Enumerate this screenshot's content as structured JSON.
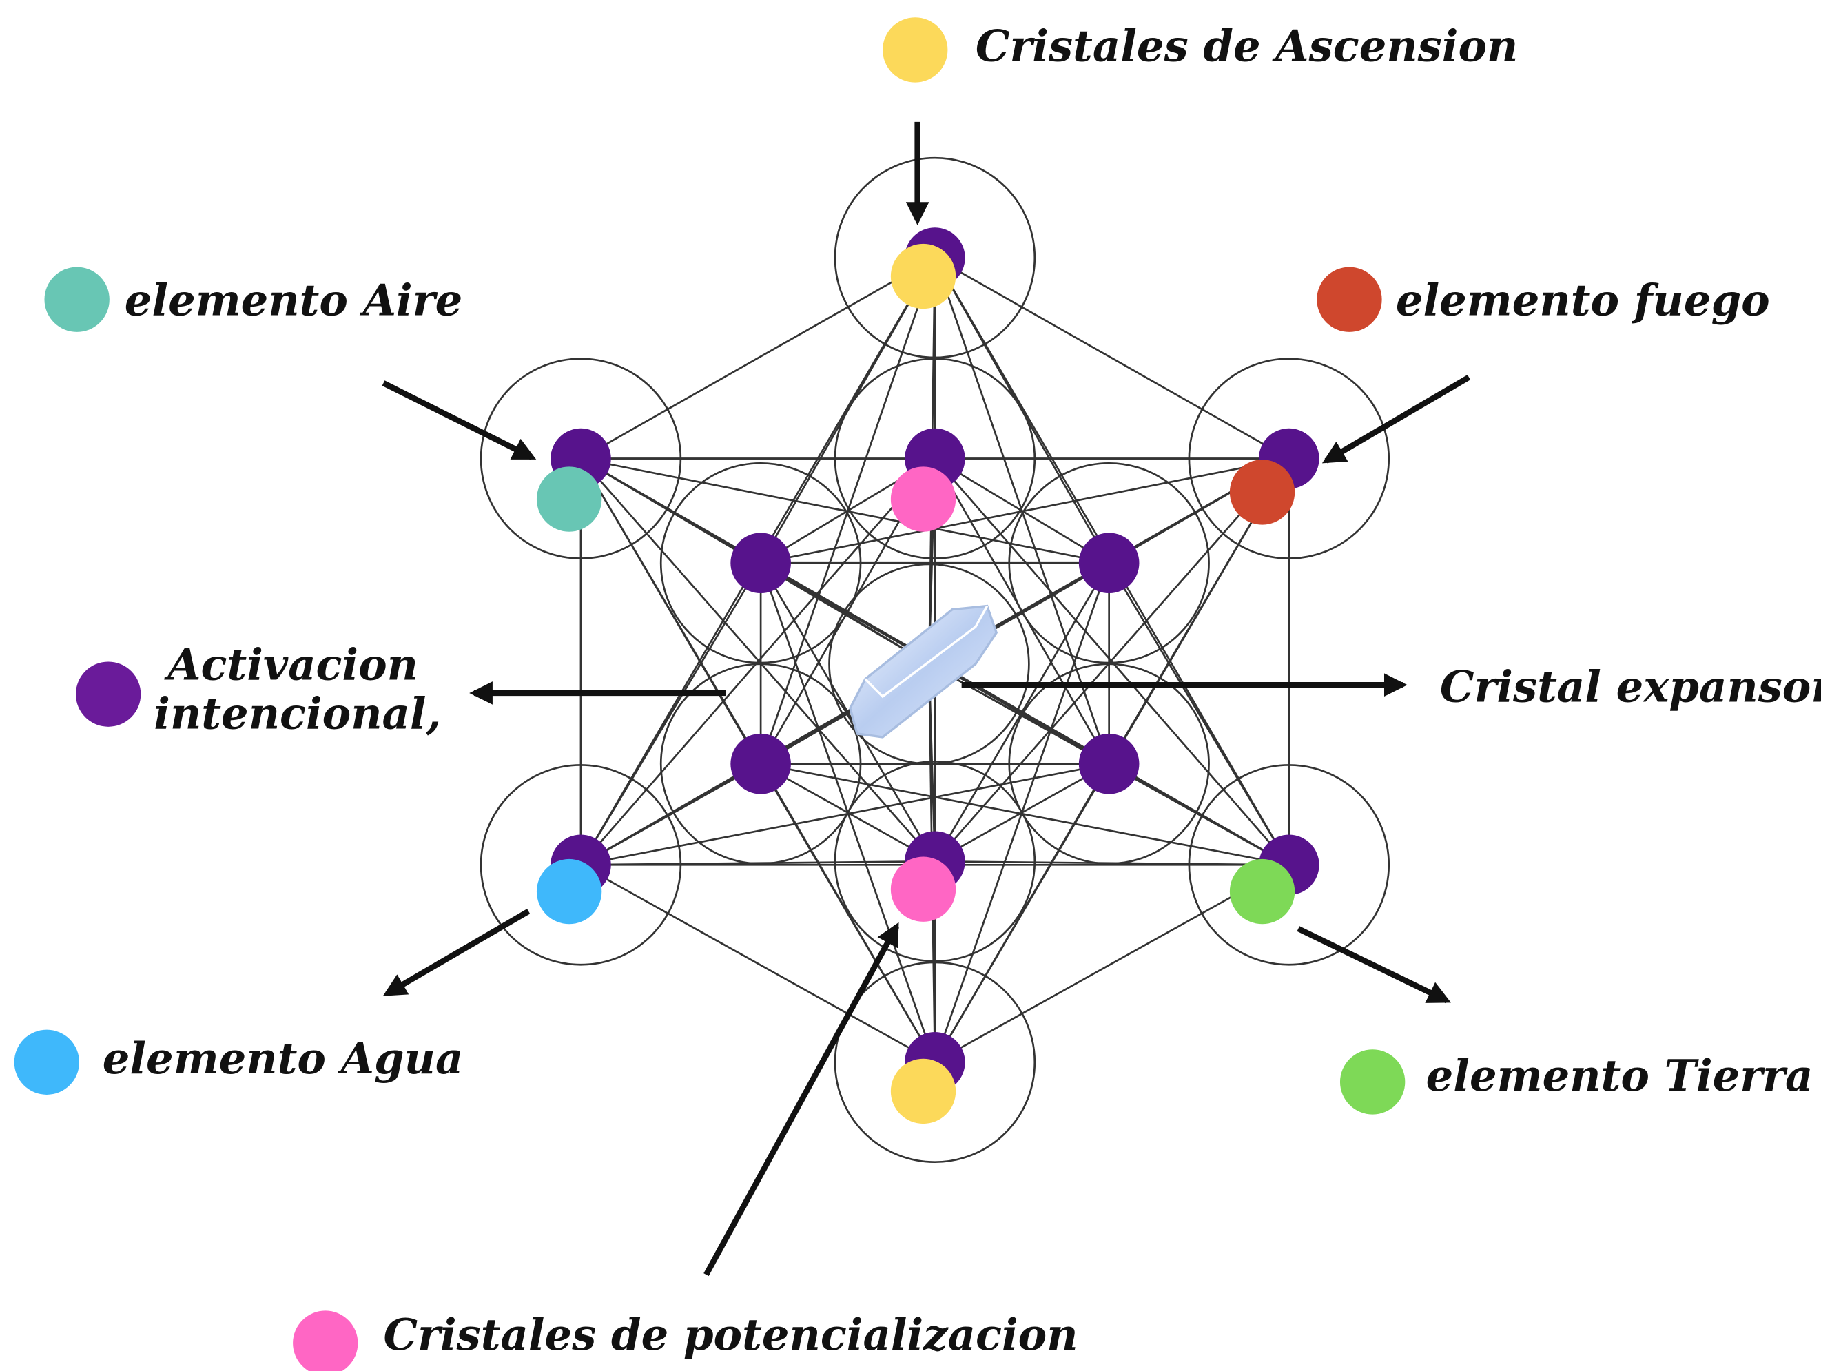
{
  "labels": {
    "ascension": "Cristales de Ascension",
    "aire": "elemento Aire",
    "fuego": "elemento fuego",
    "activacion_1": "Activacion",
    "activacion_2": "intencional,",
    "expansor": "Cristal expansor",
    "agua": "elemento Agua",
    "tierra": "elemento Tierra",
    "potencializacion": "Cristales de potencializacion"
  }
}
